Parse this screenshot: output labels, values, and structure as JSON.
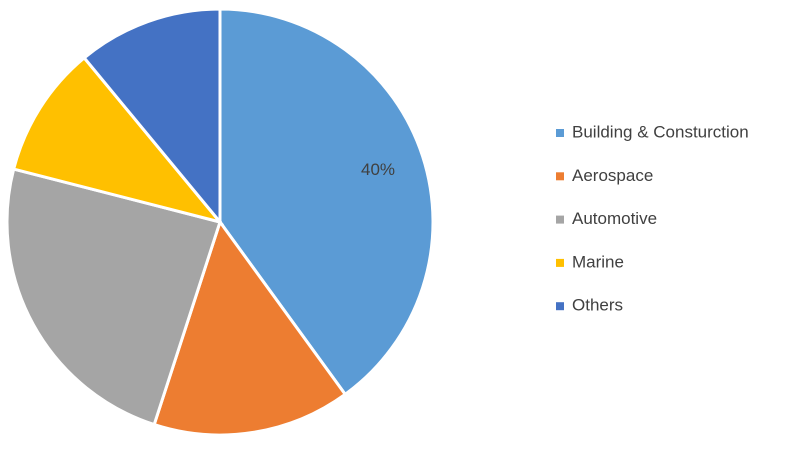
{
  "chart_data": {
    "type": "pie",
    "categories": [
      "Building & Consturction",
      "Aerospace",
      "Automotive",
      "Marine",
      "Others"
    ],
    "values": [
      40,
      15,
      24,
      10,
      11
    ],
    "value_labels": [
      "40%",
      null,
      null,
      null,
      null
    ],
    "colors": [
      "#5b9bd5",
      "#ed7d31",
      "#a5a5a5",
      "#ffc000",
      "#4472c4"
    ],
    "legend": "right"
  }
}
